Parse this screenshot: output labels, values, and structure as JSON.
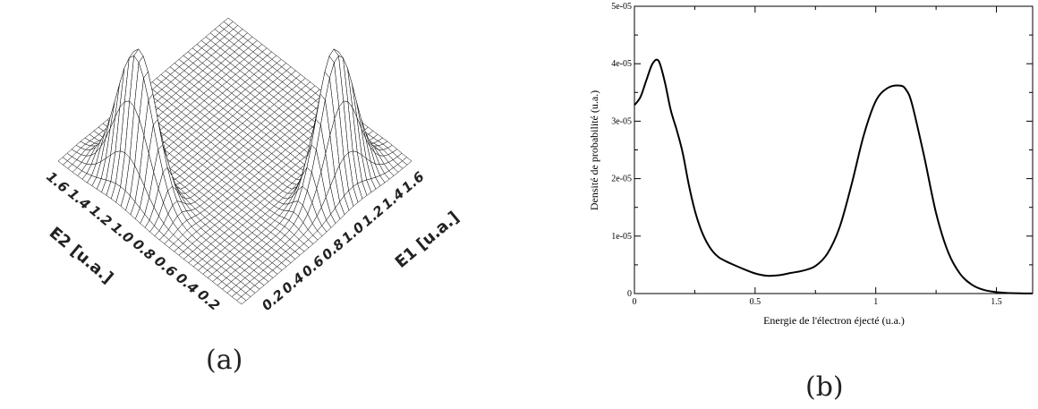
{
  "captions": {
    "a": "(a)",
    "b": "(b)"
  },
  "chart_data": [
    {
      "type": "surface",
      "x_axis_label": "E1 [u.a.]",
      "y_axis_label": "E2 [u.a.]",
      "x_ticks": [
        "0.2",
        "0.4",
        "0.6",
        "0.8",
        "1.0",
        "1.2",
        "1.4",
        "1.6"
      ],
      "y_ticks": [
        "0.2",
        "0.4",
        "0.6",
        "0.8",
        "1.0",
        "1.2",
        "1.4",
        "1.6"
      ],
      "xlim": [
        0,
        1.7
      ],
      "ylim": [
        0,
        1.7
      ],
      "grid_color": "#000000",
      "fill_color": "#ffffff"
    },
    {
      "type": "line",
      "xlabel": "Energie de l'électron éjecté (u.a.)",
      "ylabel": "Densité de probabilité (u.a.)",
      "xlim": [
        0,
        1.65
      ],
      "ylim": [
        0,
        5e-05
      ],
      "x_ticks": [
        "0",
        "0.5",
        "1",
        "1.5"
      ],
      "y_ticks": [
        "0",
        "1e-05",
        "2e-05",
        "3e-05",
        "4e-05",
        "5e-05"
      ],
      "series": [
        {
          "color": "#000000",
          "x": [
            0,
            0.025,
            0.05,
            0.075,
            0.1,
            0.125,
            0.15,
            0.175,
            0.2,
            0.225,
            0.25,
            0.275,
            0.3,
            0.325,
            0.35,
            0.375,
            0.4,
            0.45,
            0.5,
            0.55,
            0.6,
            0.65,
            0.7,
            0.75,
            0.8,
            0.85,
            0.9,
            0.95,
            1.0,
            1.05,
            1.1,
            1.125,
            1.15,
            1.2,
            1.25,
            1.3,
            1.35,
            1.4,
            1.45,
            1.5,
            1.55,
            1.6,
            1.65
          ],
          "y": [
            3.28e-05,
            3.42e-05,
            3.72e-05,
            4e-05,
            4.05e-05,
            3.7e-05,
            3.2e-05,
            2.85e-05,
            2.45e-05,
            1.9e-05,
            1.45e-05,
            1.12e-05,
            8.9e-06,
            7.3e-06,
            6.3e-06,
            5.7e-06,
            5.2e-06,
            4.3e-06,
            3.5e-06,
            3.1e-06,
            3.2e-06,
            3.6e-06,
            4e-06,
            4.8e-06,
            7e-06,
            1.15e-05,
            1.9e-05,
            2.75e-05,
            3.35e-05,
            3.58e-05,
            3.62e-05,
            3.55e-05,
            3.3e-05,
            2.4e-05,
            1.4e-05,
            7.2e-06,
            3.4e-06,
            1.5e-06,
            6e-07,
            2.5e-07,
            1e-07,
            3e-08,
            1e-08
          ]
        }
      ]
    }
  ]
}
